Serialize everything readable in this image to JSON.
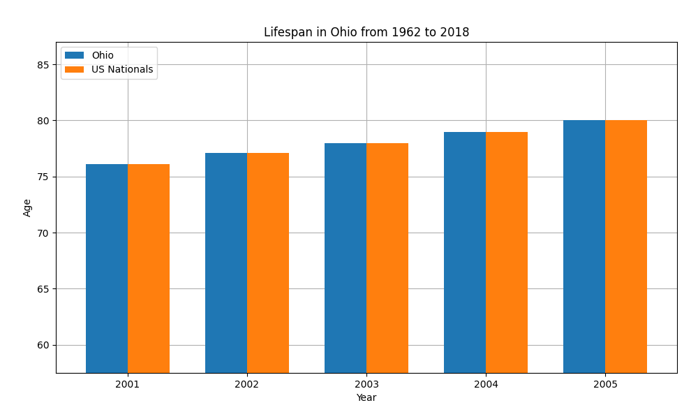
{
  "chart_data": {
    "type": "bar",
    "title": "Lifespan in Ohio from 1962 to 2018",
    "xlabel": "Year",
    "ylabel": "Age",
    "categories": [
      "2001",
      "2002",
      "2003",
      "2004",
      "2005"
    ],
    "series": [
      {
        "name": "Ohio",
        "values": [
          76.1,
          77.1,
          78.0,
          79.0,
          80.0
        ]
      },
      {
        "name": "US Nationals",
        "values": [
          76.1,
          77.1,
          78.0,
          79.0,
          80.0
        ]
      }
    ],
    "ylim": [
      57.5,
      87
    ],
    "yticks": [
      60,
      65,
      70,
      75,
      80,
      85
    ],
    "grid": true,
    "legend": "upper left"
  }
}
